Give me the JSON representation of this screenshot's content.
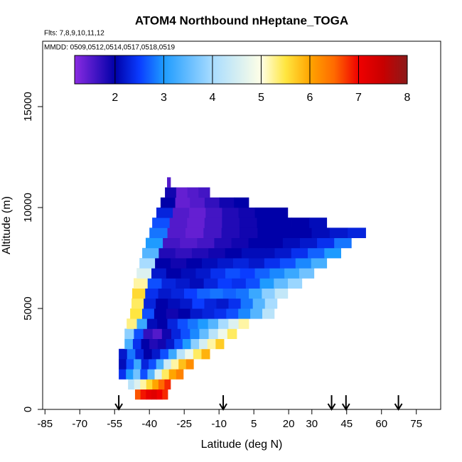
{
  "chart_data": {
    "type": "curtain",
    "title": "ATOM4 Northbound nHeptane_TOGA",
    "subtitle": "Flts: 7,8,9,10,11,12",
    "annotation": "MMDD: 0509,0512,0514,0517,0518,0519",
    "xlabel": "Latitude (deg N)",
    "ylabel": "Altitude (m)",
    "xlim": [
      -86,
      85.5
    ],
    "xticks": [
      -85,
      -70,
      -55,
      -40,
      -25,
      -10,
      5,
      20,
      30,
      45,
      60,
      75
    ],
    "ylim": [
      0,
      18240
    ],
    "yticks": [
      0,
      5000,
      10000,
      15000
    ],
    "colorbar_lim": [
      1.17,
      8
    ],
    "colorbar_ticks": [
      2,
      3,
      4,
      5,
      6,
      7,
      8
    ],
    "colorscale": [
      {
        "value": 1.17,
        "color": "#8a2be2"
      },
      {
        "value": 2,
        "color": "#0000a8"
      },
      {
        "value": 2.5,
        "color": "#0a3cff"
      },
      {
        "value": 3,
        "color": "#1e9bff"
      },
      {
        "value": 4,
        "color": "#a8dcff"
      },
      {
        "value": 5,
        "color": "#ffffe6"
      },
      {
        "value": 5.5,
        "color": "#ffe640"
      },
      {
        "value": 6,
        "color": "#ffa500"
      },
      {
        "value": 6.5,
        "color": "#ff6a00"
      },
      {
        "value": 7,
        "color": "#f00000"
      },
      {
        "value": 7.5,
        "color": "#c80000"
      },
      {
        "value": 8,
        "color": "#8b1a1a"
      }
    ],
    "arrows_latitude": [
      -53.2,
      -8.2,
      38.5,
      44.7,
      67.3
    ],
    "rows": [
      {
        "altitude": [
          500,
          1000
        ],
        "latitude": [
          -46.2,
          -32.1
        ],
        "values": [
          6.6,
          6.9,
          7.1,
          7.2,
          7.0,
          6.8
        ]
      },
      {
        "altitude": [
          1000,
          1500
        ],
        "latitude": [
          -49.2,
          -30.9
        ],
        "values": [
          4.2,
          4.6,
          5.2,
          5.6,
          6.0,
          6.5,
          6.8
        ]
      },
      {
        "altitude": [
          1500,
          2000
        ],
        "latitude": [
          -53.2,
          -25.4
        ],
        "values": [
          2.4,
          3.0,
          3.6,
          2.6,
          3.4,
          4.6,
          5.4,
          6.0,
          6.3
        ]
      },
      {
        "altitude": [
          2000,
          2500
        ],
        "latitude": [
          -53.2,
          -21
        ],
        "values": [
          2.1,
          2.6,
          3.2,
          2.3,
          2.6,
          3.3,
          4.4,
          5.2,
          5.8,
          6.2
        ]
      },
      {
        "altitude": [
          2500,
          3000
        ],
        "latitude": [
          -53.2,
          -14
        ],
        "values": [
          2.2,
          2.8,
          2.3,
          2.0,
          2.2,
          2.6,
          3.2,
          4.2,
          4.8,
          5.4,
          5.9
        ]
      },
      {
        "altitude": [
          3000,
          3500
        ],
        "latitude": [
          -50.7,
          -7.9
        ],
        "values": [
          3.3,
          2.4,
          2.0,
          1.8,
          1.9,
          2.2,
          2.6,
          3.0,
          3.8,
          4.5,
          5.2,
          5.7
        ]
      },
      {
        "altitude": [
          3500,
          4000
        ],
        "latitude": [
          -50.7,
          -2.4
        ],
        "values": [
          3.8,
          2.6,
          1.7,
          1.5,
          1.9,
          2.3,
          2.6,
          2.9,
          3.5,
          4.2,
          4.8,
          5.4
        ]
      },
      {
        "altitude": [
          4000,
          4500
        ],
        "latitude": [
          -49.8,
          2.8
        ],
        "values": [
          5.3,
          3.2,
          2.1,
          2.0,
          2.3,
          2.6,
          2.8,
          3.0,
          3.4,
          4.0,
          4.6,
          5.2
        ]
      },
      {
        "altitude": [
          4500,
          5000
        ],
        "latitude": [
          -48.3,
          13.8
        ],
        "values": [
          5.5,
          2.6,
          2.0,
          1.9,
          2.0,
          2.2,
          2.3,
          2.4,
          2.6,
          2.9,
          3.4,
          4.2
        ]
      },
      {
        "altitude": [
          5000,
          5500
        ],
        "latitude": [
          -47.7,
          15
        ],
        "values": [
          5.4,
          2.3,
          2.0,
          2.1,
          2.2,
          2.5,
          2.3,
          2.2,
          2.4,
          2.8,
          3.4,
          4.0
        ]
      },
      {
        "altitude": [
          5500,
          6000
        ],
        "latitude": [
          -47.4,
          19.6
        ],
        "values": [
          5.6,
          2.4,
          2.2,
          2.3,
          2.5,
          2.7,
          2.8,
          2.7,
          2.8,
          3.2,
          3.8,
          4.3
        ]
      },
      {
        "altitude": [
          6000,
          6500
        ],
        "latitude": [
          -46.8,
          25.7
        ],
        "values": [
          5.2,
          2.6,
          2.3,
          2.2,
          2.1,
          2.3,
          2.5,
          2.4,
          2.6,
          3.0,
          3.5,
          3.9
        ]
      },
      {
        "altitude": [
          6500,
          7000
        ],
        "latitude": [
          -45.5,
          30.9
        ],
        "values": [
          4.6,
          2.2,
          2.0,
          2.1,
          2.2,
          2.4,
          2.6,
          2.5,
          2.7,
          2.9,
          3.2,
          3.6
        ]
      },
      {
        "altitude": [
          7000,
          7500
        ],
        "latitude": [
          -44.3,
          36.4
        ],
        "values": [
          4.0,
          2.0,
          1.9,
          2.0,
          2.1,
          2.2,
          2.3,
          2.2,
          2.4,
          2.6,
          2.9,
          3.3
        ]
      },
      {
        "altitude": [
          7500,
          8000
        ],
        "latitude": [
          -43.1,
          42.5
        ],
        "values": [
          3.4,
          1.8,
          1.7,
          1.8,
          1.9,
          2.0,
          2.1,
          2.1,
          2.2,
          2.4,
          2.7,
          3.0
        ]
      },
      {
        "altitude": [
          8000,
          8500
        ],
        "latitude": [
          -41.6,
          47
        ],
        "values": [
          3.0,
          1.6,
          1.5,
          1.6,
          1.8,
          1.9,
          2.0,
          2.0,
          2.1,
          2.2,
          2.4,
          2.8
        ]
      },
      {
        "altitude": [
          8500,
          9000
        ],
        "latitude": [
          -40,
          53.2
        ],
        "values": [
          2.8,
          1.5,
          1.4,
          1.6,
          1.8,
          1.9,
          2.0,
          2.0,
          2.0,
          2.1,
          2.2,
          2.3
        ]
      },
      {
        "altitude": [
          9000,
          9500
        ],
        "latitude": [
          -38.8,
          36.4
        ],
        "values": [
          2.6,
          1.5,
          1.4,
          1.6,
          1.8,
          1.9,
          2.0,
          2.0,
          2.0,
          2.1
        ]
      },
      {
        "altitude": [
          9500,
          10000
        ],
        "latitude": [
          -37,
          19.6
        ],
        "values": [
          2.3,
          1.5,
          1.4,
          1.6,
          1.8,
          1.9,
          2.0,
          2.0
        ]
      },
      {
        "altitude": [
          10000,
          10500
        ],
        "latitude": [
          -35.2,
          2.8
        ],
        "values": [
          2.0,
          1.4,
          1.5,
          1.7,
          1.9,
          2.0
        ]
      },
      {
        "altitude": [
          10500,
          11000
        ],
        "latitude": [
          -33.3,
          -14
        ],
        "values": [
          1.9,
          1.4,
          1.5,
          1.6
        ]
      },
      {
        "altitude": [
          11000,
          11500
        ],
        "latitude": [
          -32.4,
          -30.9
        ],
        "values": [
          1.5
        ]
      }
    ]
  }
}
